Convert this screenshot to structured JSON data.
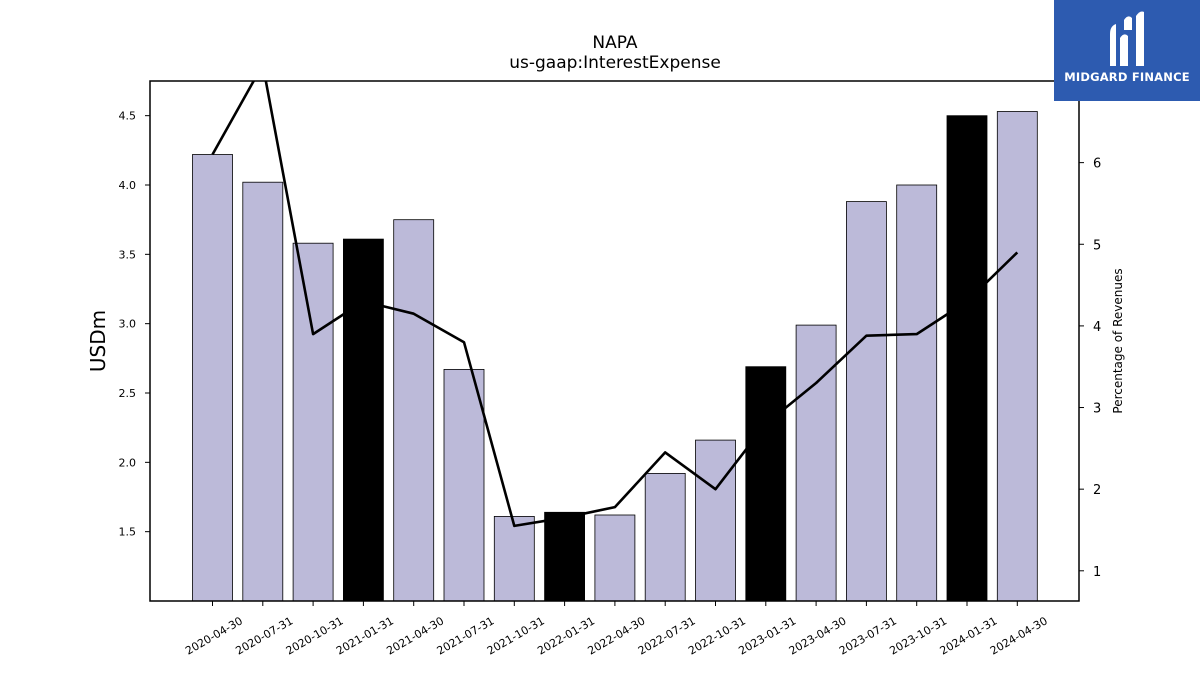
{
  "logo": {
    "text": "MIDGARD FINANCE"
  },
  "colors": {
    "bar": "#bcbad9",
    "bar_highlight": "#000000",
    "line": "#000000",
    "logo_bg": "#2d5bb0"
  },
  "chart_data": {
    "type": "bar",
    "title": "NAPA",
    "subtitle": "us-gaap:InterestExpense",
    "ylabel": "USDm",
    "y2label": "Percentage of Revenues",
    "categories": [
      "2020-04-30",
      "2020-07-31",
      "2020-10-31",
      "2021-01-31",
      "2021-04-30",
      "2021-07-31",
      "2021-10-31",
      "2022-01-31",
      "2022-04-30",
      "2022-07-31",
      "2022-10-31",
      "2023-01-31",
      "2023-04-30",
      "2023-07-31",
      "2023-10-31",
      "2024-01-31",
      "2024-04-30"
    ],
    "series": [
      {
        "type": "bar",
        "values": [
          4.22,
          4.02,
          3.58,
          3.61,
          3.75,
          2.67,
          1.61,
          1.64,
          1.62,
          1.92,
          2.16,
          2.69,
          2.99,
          3.88,
          4.0,
          4.5,
          4.53
        ],
        "highlight": [
          false,
          false,
          false,
          true,
          false,
          false,
          false,
          true,
          false,
          false,
          false,
          true,
          false,
          false,
          false,
          true,
          false
        ]
      },
      {
        "type": "line",
        "axis": "right",
        "values": [
          6.1,
          7.2,
          3.9,
          4.3,
          4.15,
          3.8,
          1.55,
          1.65,
          1.78,
          2.45,
          2.0,
          2.8,
          3.3,
          3.88,
          3.9,
          4.3,
          4.9
        ]
      }
    ],
    "ylim": [
      1.0,
      4.75
    ],
    "yticks": [
      1.5,
      2.0,
      2.5,
      3.0,
      3.5,
      4.0,
      4.5
    ],
    "ytick_labels": [
      "1.5",
      "2.0",
      "2.5",
      "3.0",
      "3.5",
      "4.0",
      "4.5"
    ],
    "y2lim": [
      0.63,
      7.0
    ],
    "y2ticks": [
      1,
      2,
      3,
      4,
      5,
      6
    ],
    "y2tick_labels": [
      "1",
      "2",
      "3",
      "4",
      "5",
      "6"
    ],
    "grid": false
  }
}
